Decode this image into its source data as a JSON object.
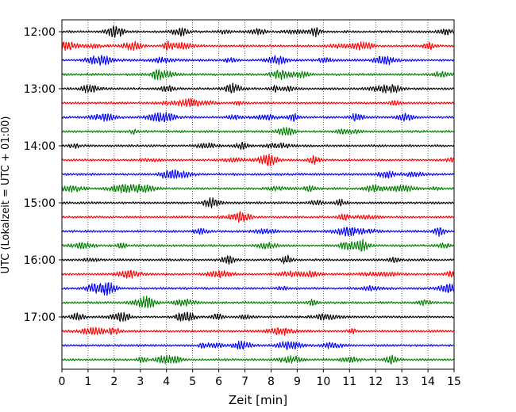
{
  "chart_data": {
    "type": "line",
    "subtype": "helicorder",
    "xlabel": "Zeit  [min]",
    "ylabel": "UTC (Lokalzeit = UTC + 01:00)",
    "xlim": [
      0,
      15
    ],
    "x_ticks": [
      0,
      1,
      2,
      3,
      4,
      5,
      6,
      7,
      8,
      9,
      10,
      11,
      12,
      13,
      14,
      15
    ],
    "x_tick_labels": [
      "0",
      "1",
      "2",
      "3",
      "4",
      "5",
      "6",
      "7",
      "8",
      "9",
      "10",
      "11",
      "12",
      "13",
      "14",
      "15"
    ],
    "y_tick_labels": [
      "12:00",
      "13:00",
      "14:00",
      "15:00",
      "16:00",
      "17:00"
    ],
    "rows_per_hour": 4,
    "minutes_per_row": 15,
    "start_time": "12:00",
    "row_count": 24,
    "row_colors": [
      "#000000",
      "#ff0000",
      "#0000ff",
      "#007f00"
    ],
    "grid": {
      "vertical": true,
      "style": "dotted"
    }
  }
}
